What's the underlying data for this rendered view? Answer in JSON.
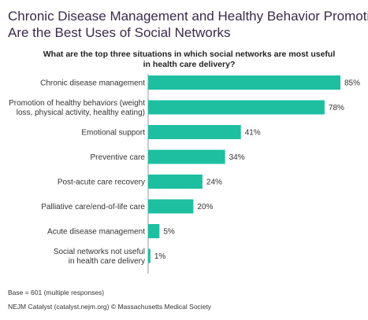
{
  "title_lines": [
    "Chronic Disease Management and Healthy Behavior Promotion",
    "Are the Best Uses of Social Networks"
  ],
  "subtitle_lines": [
    "What are the top three situations in which social networks are most useful",
    "in health care delivery?"
  ],
  "footer": {
    "base": "Base = 601 (multiple responses)",
    "source": "NEJM Catalyst (catalyst.nejm.org) © Massachusetts Medical Society"
  },
  "colors": {
    "bar": "#1dbfa0",
    "axis": "#9a9a9a",
    "title": "#3a2a4a"
  },
  "chart_data": {
    "type": "bar",
    "orientation": "horizontal",
    "categories": [
      [
        "Chronic disease management"
      ],
      [
        "Promotion of healthy behaviors (weight",
        "loss, physical activity, healthy eating)"
      ],
      [
        "Emotional support"
      ],
      [
        "Preventive care"
      ],
      [
        "Post-acute care recovery"
      ],
      [
        "Palliative care/end-of-life care"
      ],
      [
        "Acute disease management"
      ],
      [
        "Social networks not useful",
        "in health care delivery"
      ]
    ],
    "values": [
      85,
      78,
      41,
      34,
      24,
      20,
      5,
      1
    ],
    "value_labels": [
      "85%",
      "78%",
      "41%",
      "34%",
      "24%",
      "20%",
      "5%",
      "1%"
    ],
    "xlim": [
      0,
      85
    ],
    "grid": false
  }
}
